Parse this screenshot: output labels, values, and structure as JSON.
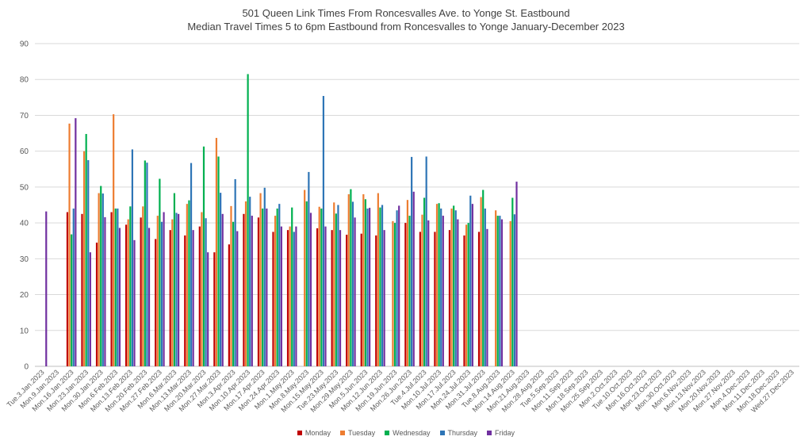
{
  "chart_data": {
    "type": "bar",
    "title": "501 Queen Link Times From Roncesvalles Ave. to Yonge St. Eastbound",
    "subtitle": "Median Travel Times 5 to 6pm Eastbound from Roncesvalles to Yonge January-December 2023",
    "xlabel": "",
    "ylabel": "",
    "ylim": [
      0,
      90
    ],
    "yticks": [
      0,
      10,
      20,
      30,
      40,
      50,
      60,
      70,
      80,
      90
    ],
    "grid": true,
    "legend_position": "bottom",
    "categories": [
      "Tue.3.Jan.2023",
      "Mon.9.Jan.2023",
      "Mon.16.Jan.2023",
      "Mon.23.Jan.2023",
      "Mon.30.Jan.2023",
      "Mon.6.Feb.2023",
      "Mon.13.Feb.2023",
      "Mon.20.Feb.2023",
      "Mon.27.Feb.2023",
      "Mon.6.Mar.2023",
      "Mon.13.Mar.2023",
      "Mon.20.Mar.2023",
      "Mon.27.Mar.2023",
      "Mon.3.Apr.2023",
      "Mon.10.Apr.2023",
      "Mon.17.Apr.2023",
      "Mon.24.Apr.2023",
      "Mon.1.May.2023",
      "Mon.8.May.2023",
      "Mon.15.May.2023",
      "Tue.23.May.2023",
      "Mon.29.May.2023",
      "Mon.5.Jun.2023",
      "Mon.12.Jun.2023",
      "Mon.19.Jun.2023",
      "Mon.26.Jun.2023",
      "Tue.4.Jul.2023",
      "Mon.10.Jul.2023",
      "Mon.17.Jul.2023",
      "Mon.24.Jul.2023",
      "Mon.31.Jul.2023",
      "Tue.8.Aug.2023",
      "Mon.14.Aug.2023",
      "Mon.21.Aug.2023",
      "Mon.28.Aug.2023",
      "Tue.5.Sep.2023",
      "Mon.11.Sep.2023",
      "Mon.18.Sep.2023",
      "Mon.25.Sep.2023",
      "Mon.2.Oct.2023",
      "Tue.10.Oct.2023",
      "Mon.16.Oct.2023",
      "Mon.23.Oct.2023",
      "Mon.30.Oct.2023",
      "Mon.6.Nov.2023",
      "Mon.13.Nov.2023",
      "Mon.20.Nov.2023",
      "Mon.27.Nov.2023",
      "Mon.4.Dec.2023",
      "Mon.11.Dec.2023",
      "Mon.18.Dec.2023",
      "Wed.27.Dec.2023"
    ],
    "series": [
      {
        "name": "Monday",
        "color": "#c00000",
        "values": [
          null,
          null,
          43,
          42.5,
          34.5,
          43,
          39.5,
          41.5,
          35.5,
          38,
          36.5,
          39,
          31.8,
          34,
          42.5,
          41.5,
          37.5,
          38,
          null,
          38.5,
          38,
          36.7,
          37,
          36.5,
          null,
          40,
          37.5,
          37.5,
          38,
          36.5,
          37.5,
          null,
          null,
          null,
          null,
          null,
          null,
          null,
          null,
          null,
          null,
          null,
          null,
          null,
          null,
          null,
          null,
          null,
          null,
          null,
          null,
          null
        ]
      },
      {
        "name": "Tuesday",
        "color": "#ed7d31",
        "values": [
          null,
          null,
          67.7,
          60,
          48.3,
          70.3,
          41,
          44.6,
          42,
          41,
          45.3,
          43,
          63.7,
          44.7,
          46,
          48.3,
          42,
          39,
          49.2,
          44.5,
          45.7,
          48,
          48,
          48.3,
          40.5,
          46.4,
          42.3,
          45.3,
          44,
          39.5,
          47.2,
          43.5,
          40.5,
          null,
          null,
          null,
          null,
          null,
          null,
          null,
          null,
          null,
          null,
          null,
          null,
          null,
          null,
          null,
          null,
          null,
          null,
          null
        ]
      },
      {
        "name": "Wednesday",
        "color": "#00b050",
        "values": [
          null,
          null,
          36.8,
          64.8,
          50.3,
          44,
          44.6,
          57.4,
          52.3,
          48.3,
          46.3,
          61.3,
          58.5,
          40.3,
          81.5,
          44,
          44,
          44.3,
          46,
          44,
          42.6,
          49.4,
          46.6,
          44.3,
          40,
          42,
          47,
          45.5,
          44.8,
          40,
          49.2,
          42,
          47,
          null,
          null,
          null,
          null,
          null,
          null,
          null,
          null,
          null,
          null,
          null,
          null,
          null,
          null,
          null,
          null,
          null,
          null,
          null
        ]
      },
      {
        "name": "Thursday",
        "color": "#2e75b6",
        "values": [
          null,
          null,
          44,
          57.5,
          48.2,
          44,
          60.5,
          56.8,
          40.3,
          42.8,
          56.7,
          41.3,
          48.4,
          52.2,
          47.3,
          49.8,
          45.3,
          37.5,
          54.2,
          75.4,
          45,
          45.9,
          44,
          45,
          43.5,
          58.4,
          58.5,
          44,
          43.5,
          47.6,
          44,
          42,
          42.4,
          null,
          null,
          null,
          null,
          null,
          null,
          null,
          null,
          null,
          null,
          null,
          null,
          null,
          null,
          null,
          null,
          null,
          null,
          null
        ]
      },
      {
        "name": "Friday",
        "color": "#7030a0",
        "values": [
          43.2,
          null,
          69.2,
          31.8,
          41.6,
          38.6,
          35.2,
          38.6,
          43,
          42.5,
          38,
          31.8,
          42.5,
          37.7,
          42,
          44,
          39,
          39,
          42.8,
          39,
          38,
          41.5,
          44.2,
          38,
          44.8,
          48.7,
          40.7,
          42,
          41,
          45.3,
          38.3,
          41,
          51.5,
          null,
          null,
          null,
          null,
          null,
          null,
          null,
          null,
          null,
          null,
          null,
          null,
          null,
          null,
          null,
          null,
          null,
          null,
          null
        ]
      }
    ]
  }
}
